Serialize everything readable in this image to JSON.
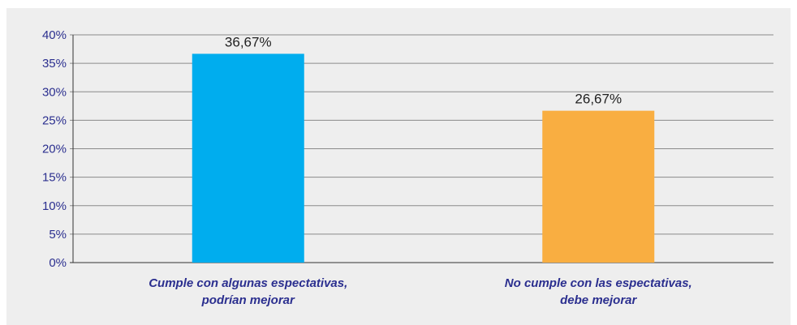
{
  "chart_data": {
    "type": "bar",
    "categories": [
      [
        "Cumple con algunas espectativas,",
        "podrían mejorar"
      ],
      [
        "No cumple con las espectativas,",
        "debe mejorar"
      ]
    ],
    "values": [
      36.67,
      26.67
    ],
    "data_labels": [
      "36,67%",
      "26,67%"
    ],
    "colors": [
      "#00adee",
      "#f9ae41"
    ],
    "ylim": [
      0,
      40
    ],
    "y_ticks": [
      "0%",
      "5%",
      "10%",
      "15%",
      "20%",
      "25%",
      "30%",
      "35%",
      "40%"
    ],
    "grid": true,
    "legend": "none"
  }
}
